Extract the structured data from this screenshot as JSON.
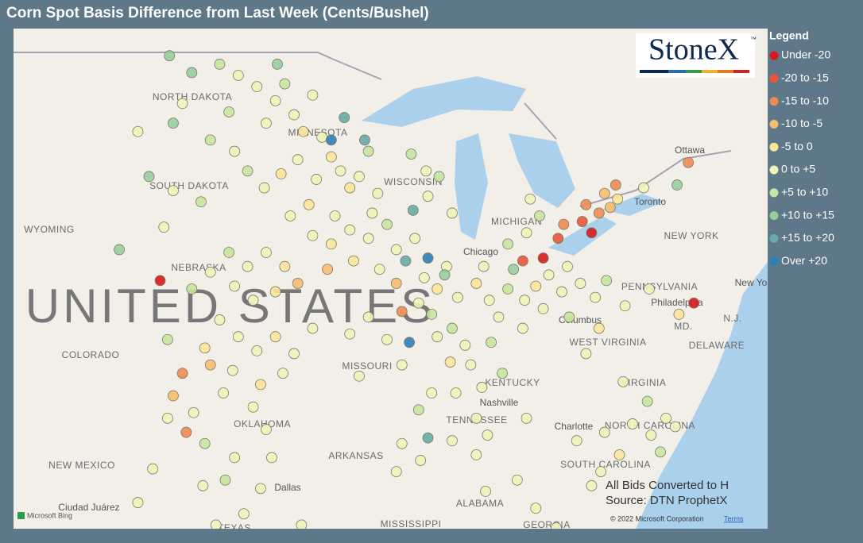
{
  "title": "Corn Spot Basis Difference from Last Week (Cents/Bushel)",
  "logo": {
    "name": "StoneX",
    "mark": "™"
  },
  "legend": {
    "title": "Legend",
    "items": [
      {
        "label": "Under -20",
        "color": "#d7191c"
      },
      {
        "label": "-20 to -15",
        "color": "#e8553a"
      },
      {
        "label": "-15 to -10",
        "color": "#f08b52"
      },
      {
        "label": "-10 to -5",
        "color": "#f9bc6e"
      },
      {
        "label": "-5 to 0",
        "color": "#fde69a"
      },
      {
        "label": "0 to +5",
        "color": "#eef3b8"
      },
      {
        "label": "+5 to +10",
        "color": "#c6e5a0"
      },
      {
        "label": "+10 to +15",
        "color": "#98cd9c"
      },
      {
        "label": "+15 to +20",
        "color": "#67aaa6"
      },
      {
        "label": "Over +20",
        "color": "#2b7fb8"
      }
    ]
  },
  "map_labels": [
    "NORTH DAKOTA",
    "MINNESOTA",
    "SOUTH DAKOTA",
    "WYOMING",
    "WISCONSIN",
    "MICHIGAN",
    "UNITED STATES",
    "COLORADO",
    "MISSOURI",
    "KENTUCKY",
    "TENNESSEE",
    "WEST VIRGINIA",
    "VIRGINIA",
    "NORTH CAROLINA",
    "SOUTH CAROLINA",
    "OKLAHOMA",
    "ARKANSAS",
    "NEW MEXICO",
    "TEXAS",
    "MISSISSIPPI",
    "ALABAMA",
    "GEORGIA",
    "NEW YORK",
    "PENNSYLVANIA",
    "DELAWARE",
    "MD.",
    "N.J.",
    "NEBRASKA",
    "Ottawa",
    "Toronto",
    "Chicago",
    "Columbus",
    "Philadelphia",
    "Nashville",
    "Charlotte",
    "Dallas",
    "Ciudad Juárez",
    "New York"
  ],
  "notes": [
    "All Bids Converted to H",
    "Source: DTN ProphetX"
  ],
  "attribution": {
    "bing": "Microsoft Bing",
    "copyright": "© 2022 Microsoft Corporation",
    "terms": "Terms"
  },
  "points": [
    [
      -101,
      48.6,
      6
    ],
    [
      -100,
      48.2,
      5
    ],
    [
      -99,
      47.8,
      5
    ],
    [
      -98,
      47.3,
      5
    ],
    [
      -97.5,
      47.9,
      6
    ],
    [
      -97,
      46.8,
      5
    ],
    [
      -96.5,
      46.2,
      4
    ],
    [
      -98.5,
      46.5,
      5
    ],
    [
      -100.5,
      46.9,
      6
    ],
    [
      -102.5,
      48.3,
      7
    ],
    [
      -103,
      47.2,
      5
    ],
    [
      -96,
      47.5,
      5
    ],
    [
      -95.5,
      46,
      5
    ],
    [
      -95,
      45.3,
      4
    ],
    [
      -94.5,
      44.8,
      5
    ],
    [
      -94,
      44.2,
      4
    ],
    [
      -93.5,
      44.6,
      5
    ],
    [
      -93,
      45.5,
      6
    ],
    [
      -92.5,
      44,
      5
    ],
    [
      -95.8,
      44.5,
      5
    ],
    [
      -96.8,
      45.2,
      5
    ],
    [
      -97.7,
      44.7,
      4
    ],
    [
      -98.6,
      44.2,
      5
    ],
    [
      -99.5,
      44.8,
      6
    ],
    [
      -100.2,
      45.5,
      5
    ],
    [
      -101.5,
      45.9,
      6
    ],
    [
      -103.5,
      46.5,
      7
    ],
    [
      -96.2,
      43.6,
      4
    ],
    [
      -97.2,
      43.2,
      5
    ],
    [
      -93.2,
      45.9,
      8
    ],
    [
      -95,
      45.9,
      9
    ],
    [
      -94.3,
      46.7,
      8
    ],
    [
      -97.9,
      48.6,
      7
    ],
    [
      -103.5,
      44.1,
      5
    ],
    [
      -102,
      43.7,
      6
    ],
    [
      -104.8,
      44.6,
      7
    ],
    [
      -96,
      42.5,
      5
    ],
    [
      -95,
      42.2,
      4
    ],
    [
      -94,
      42.7,
      5
    ],
    [
      -93,
      42.4,
      5
    ],
    [
      -92,
      42.9,
      6
    ],
    [
      -91.5,
      42,
      5
    ],
    [
      -93.8,
      41.6,
      4
    ],
    [
      -95.2,
      41.3,
      3
    ],
    [
      -92.4,
      41.3,
      5
    ],
    [
      -91,
      41.6,
      8
    ],
    [
      -90.5,
      42.4,
      5
    ],
    [
      -94.8,
      43.2,
      5
    ],
    [
      -92.8,
      43.3,
      5
    ],
    [
      -100.5,
      41.9,
      6
    ],
    [
      -99.5,
      41.4,
      5
    ],
    [
      -98.5,
      41.9,
      5
    ],
    [
      -97.5,
      41.4,
      4
    ],
    [
      -96.8,
      40.8,
      3
    ],
    [
      -98,
      40.5,
      4
    ],
    [
      -99.2,
      40.2,
      5
    ],
    [
      -100.2,
      40.7,
      5
    ],
    [
      -101.5,
      41.2,
      5
    ],
    [
      -102.5,
      40.6,
      6
    ],
    [
      -101,
      39.5,
      5
    ],
    [
      -100,
      38.9,
      5
    ],
    [
      -99,
      38.4,
      5
    ],
    [
      -98,
      38.9,
      4
    ],
    [
      -97,
      38.3,
      5
    ],
    [
      -96,
      39.2,
      5
    ],
    [
      -97.6,
      37.6,
      5
    ],
    [
      -98.8,
      37.2,
      4
    ],
    [
      -100.3,
      37.7,
      5
    ],
    [
      -101.5,
      37.9,
      3
    ],
    [
      -101.8,
      38.5,
      4
    ],
    [
      -100.8,
      36.9,
      5
    ],
    [
      -99.2,
      36.4,
      5
    ],
    [
      -98.5,
      35.6,
      5
    ],
    [
      -98.2,
      34.6,
      5
    ],
    [
      -98.8,
      33.5,
      5
    ],
    [
      -104.2,
      40.9,
      0
    ],
    [
      -103.8,
      38.8,
      6
    ],
    [
      -103,
      37.6,
      2
    ],
    [
      -103.5,
      36.8,
      3
    ],
    [
      -102.4,
      36.2,
      5
    ],
    [
      -101.8,
      35.1,
      6
    ],
    [
      -103.8,
      36,
      5
    ],
    [
      -102.8,
      35.5,
      2
    ],
    [
      -90,
      41,
      5
    ],
    [
      -89.3,
      40.6,
      4
    ],
    [
      -88.8,
      41.4,
      5
    ],
    [
      -88.2,
      40.3,
      5
    ],
    [
      -89.6,
      39.7,
      6
    ],
    [
      -90.3,
      40.1,
      5
    ],
    [
      -89.3,
      38.9,
      5
    ],
    [
      -88.5,
      39.2,
      6
    ],
    [
      -87.8,
      38.6,
      5
    ],
    [
      -87.2,
      40.8,
      4
    ],
    [
      -86.5,
      40.2,
      5
    ],
    [
      -86,
      39.6,
      5
    ],
    [
      -85.5,
      40.6,
      6
    ],
    [
      -86.8,
      41.4,
      5
    ],
    [
      -85.2,
      41.3,
      7
    ],
    [
      -84.6,
      40.2,
      5
    ],
    [
      -84,
      40.7,
      4
    ],
    [
      -83.3,
      41.1,
      5
    ],
    [
      -83.6,
      39.9,
      5
    ],
    [
      -82.6,
      40.5,
      5
    ],
    [
      -82.2,
      39.6,
      6
    ],
    [
      -81.6,
      40.8,
      5
    ],
    [
      -84.7,
      39.2,
      5
    ],
    [
      -86.4,
      38.7,
      6
    ],
    [
      -87.5,
      37.9,
      5
    ],
    [
      -88.6,
      38,
      4
    ],
    [
      -89.8,
      41.7,
      9
    ],
    [
      -90.6,
      43.4,
      8
    ],
    [
      -91.5,
      40.8,
      3
    ],
    [
      -91.2,
      39.8,
      2
    ],
    [
      -90.8,
      38.7,
      9
    ],
    [
      -88.9,
      41.1,
      7
    ],
    [
      -89.8,
      43.9,
      5
    ],
    [
      -89.2,
      44.6,
      6
    ],
    [
      -88.5,
      43.3,
      5
    ],
    [
      -89.9,
      44.8,
      5
    ],
    [
      -90.7,
      45.4,
      6
    ],
    [
      -93,
      39.6,
      5
    ],
    [
      -94,
      39,
      5
    ],
    [
      -92,
      38.8,
      5
    ],
    [
      -93.5,
      37.5,
      5
    ],
    [
      -91.2,
      37.9,
      5
    ],
    [
      -90.3,
      36.3,
      6
    ],
    [
      -89.6,
      36.9,
      5
    ],
    [
      -88.3,
      36.9,
      5
    ],
    [
      -86.9,
      37.1,
      5
    ],
    [
      -85.8,
      37.6,
      6
    ],
    [
      -87.2,
      36,
      5
    ],
    [
      -88.5,
      35.2,
      5
    ],
    [
      -89.8,
      35.3,
      8
    ],
    [
      -90.2,
      34.5,
      5
    ],
    [
      -91.2,
      35.1,
      5
    ],
    [
      -91.5,
      34.1,
      5
    ],
    [
      -86.6,
      35.4,
      5
    ],
    [
      -84.5,
      36,
      5
    ],
    [
      -87.2,
      34.7,
      5
    ],
    [
      -86.7,
      33.4,
      5
    ],
    [
      -85,
      33.8,
      5
    ],
    [
      -84,
      32.8,
      5
    ],
    [
      -82.9,
      32.1,
      5
    ],
    [
      -84.5,
      42.6,
      5
    ],
    [
      -85.5,
      42.2,
      6
    ],
    [
      -83.8,
      43.2,
      6
    ],
    [
      -84.3,
      43.8,
      5
    ],
    [
      -82.8,
      42.4,
      1
    ],
    [
      -82.5,
      42.9,
      2
    ],
    [
      -81.5,
      43,
      1
    ],
    [
      -80.6,
      43.3,
      2
    ],
    [
      -80,
      43.5,
      3
    ],
    [
      -79.6,
      43.8,
      4
    ],
    [
      -81,
      42.6,
      0
    ],
    [
      -81.3,
      43.6,
      2
    ],
    [
      -80.3,
      44,
      3
    ],
    [
      -79.7,
      44.3,
      2
    ],
    [
      -78.2,
      44.2,
      5
    ],
    [
      -76.4,
      44.3,
      7
    ],
    [
      -75.8,
      45.1,
      2
    ],
    [
      -84.7,
      41.6,
      1
    ],
    [
      -83.6,
      41.7,
      0
    ],
    [
      -82.3,
      41.4,
      5
    ],
    [
      -80.8,
      40.3,
      5
    ],
    [
      -80.2,
      40.9,
      6
    ],
    [
      -79.2,
      40,
      5
    ],
    [
      -77.9,
      40.6,
      5
    ],
    [
      -75.5,
      40.1,
      0
    ],
    [
      -76.3,
      39.7,
      4
    ],
    [
      -80.6,
      39.2,
      4
    ],
    [
      -81.3,
      38.3,
      5
    ],
    [
      -79.3,
      37.3,
      5
    ],
    [
      -78,
      36.6,
      6
    ],
    [
      -77,
      36,
      5
    ],
    [
      -77.8,
      35.4,
      5
    ],
    [
      -77.3,
      34.8,
      6
    ],
    [
      -78.8,
      35.8,
      5
    ],
    [
      -79.5,
      34.7,
      4
    ],
    [
      -80.5,
      34.1,
      5
    ],
    [
      -81.8,
      35.2,
      5
    ],
    [
      -76.5,
      35.7,
      5
    ],
    [
      -80.3,
      35.5,
      5
    ],
    [
      -81,
      33.6,
      5
    ],
    [
      -101.9,
      33.6,
      5
    ],
    [
      -100.7,
      33.8,
      6
    ],
    [
      -99.7,
      32.6,
      5
    ],
    [
      -101.2,
      32.2,
      5
    ],
    [
      -100.2,
      34.6,
      5
    ],
    [
      -97.4,
      31.3,
      5
    ],
    [
      -96.6,
      32.2,
      5
    ],
    [
      -105.4,
      33,
      5
    ],
    [
      -104.6,
      34.2,
      5
    ],
    [
      -106.4,
      42,
      7
    ],
    [
      -104,
      42.8,
      5
    ],
    [
      -105.4,
      46.2,
      5
    ],
    [
      -103.7,
      48.9,
      7
    ]
  ]
}
